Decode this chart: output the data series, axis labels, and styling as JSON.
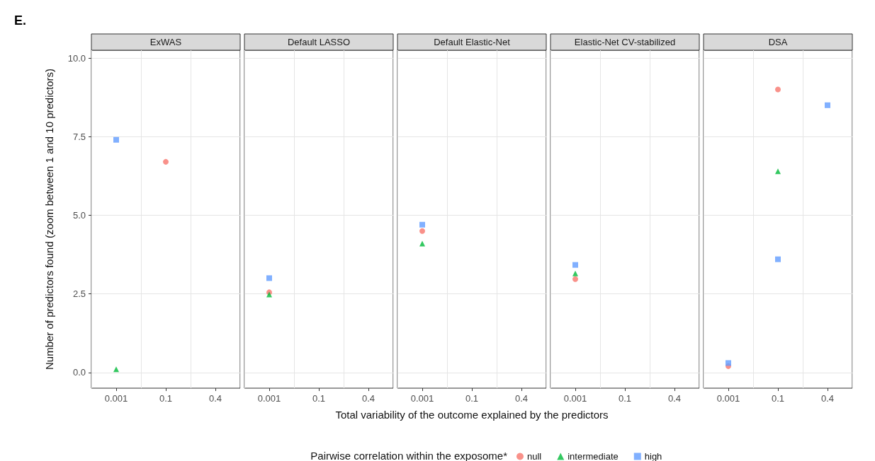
{
  "chart_data": [
    {
      "type": "scatter",
      "title": "ExWAS",
      "ylabel": "Number of predictors found (zoom between 1 and 10 predictors)",
      "legend_title": "Pairwise correlation within the exposome*",
      "legend": "bottom",
      "grid": true,
      "annotations": [
        "E."
      ],
      "categories": [
        "0.001",
        "0.1",
        "0.4"
      ],
      "ylim": [
        -0.5,
        10.25
      ],
      "yticks": [
        {
          "value": 0,
          "label": "0.0"
        },
        2.5,
        {
          "value": 5,
          "label": "5.0"
        },
        7.5,
        {
          "value": 10,
          "label": "10.0"
        }
      ],
      "series": [
        {
          "name": "null",
          "color": "#f8766d",
          "marker": "circle",
          "values": [
            null,
            6.7,
            null
          ]
        },
        {
          "name": "intermediate",
          "color": "#00ba38",
          "marker": "triangle",
          "values": [
            0.1,
            null,
            null
          ]
        },
        {
          "name": "high",
          "color": "#619cff",
          "marker": "square",
          "values": [
            7.4,
            null,
            null
          ]
        }
      ]
    },
    {
      "type": "scatter",
      "title": "Default LASSO",
      "grid": true,
      "tick_labels": "x",
      "categories": [
        "0.001",
        "0.1",
        "0.4"
      ],
      "ylim": [
        -0.5,
        10.25
      ],
      "series": [
        {
          "name": "null",
          "color": "#f8766d",
          "marker": "circle",
          "values": [
            2.55,
            null,
            null
          ]
        },
        {
          "name": "intermediate",
          "color": "#00ba38",
          "marker": "triangle",
          "values": [
            2.48,
            null,
            null
          ]
        },
        {
          "name": "high",
          "color": "#619cff",
          "marker": "square",
          "values": [
            3.0,
            null,
            null
          ]
        }
      ]
    },
    {
      "type": "scatter",
      "title": "Default Elastic-Net",
      "xlabel": "Total variability of the outcome explained by the predictors",
      "grid": true,
      "tick_labels": "x",
      "categories": [
        "0.001",
        "0.1",
        "0.4"
      ],
      "ylim": [
        -0.5,
        10.25
      ],
      "series": [
        {
          "name": "null",
          "color": "#f8766d",
          "marker": "circle",
          "values": [
            4.5,
            null,
            null
          ]
        },
        {
          "name": "intermediate",
          "color": "#00ba38",
          "marker": "triangle",
          "values": [
            4.1,
            null,
            null
          ]
        },
        {
          "name": "high",
          "color": "#619cff",
          "marker": "square",
          "values": [
            4.7,
            null,
            null
          ]
        }
      ]
    },
    {
      "type": "scatter",
      "title": "Elastic-Net CV-stabilized",
      "grid": true,
      "tick_labels": "x",
      "categories": [
        "0.001",
        "0.1",
        "0.4"
      ],
      "ylim": [
        -0.5,
        10.25
      ],
      "series": [
        {
          "name": "null",
          "color": "#f8766d",
          "marker": "circle",
          "values": [
            2.97,
            null,
            null
          ]
        },
        {
          "name": "intermediate",
          "color": "#00ba38",
          "marker": "triangle",
          "values": [
            3.15,
            null,
            null
          ]
        },
        {
          "name": "high",
          "color": "#619cff",
          "marker": "square",
          "values": [
            3.42,
            null,
            null
          ]
        }
      ]
    },
    {
      "type": "scatter",
      "title": "DSA",
      "grid": true,
      "tick_labels": "x",
      "categories": [
        "0.001",
        "0.1",
        "0.4"
      ],
      "ylim": [
        -0.5,
        10.25
      ],
      "series": [
        {
          "name": "null",
          "color": "#f8766d",
          "marker": "circle",
          "values": [
            0.2,
            9.0,
            null
          ]
        },
        {
          "name": "intermediate",
          "color": "#00ba38",
          "marker": "triangle",
          "values": [
            null,
            6.4,
            null
          ]
        },
        {
          "name": "high",
          "color": "#619cff",
          "marker": "square",
          "values": [
            0.3,
            3.6,
            8.5
          ]
        }
      ]
    }
  ]
}
